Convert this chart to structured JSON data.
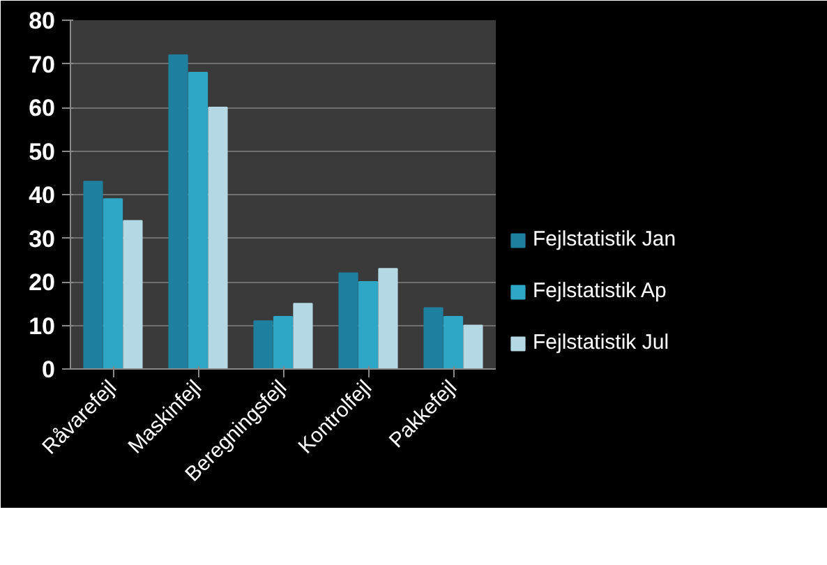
{
  "chart_data": {
    "type": "bar",
    "categories": [
      "Råvarefejl",
      "Maskinfejl",
      "Beregningsfejl",
      "Kontrolfejl",
      "Pakkefejl"
    ],
    "series": [
      {
        "name": "Fejlstatistik Jan",
        "color": "#1f7f9e",
        "values": [
          43,
          72,
          11,
          22,
          14
        ]
      },
      {
        "name": "Fejlstatistik Ap",
        "color": "#2ea6c6",
        "values": [
          39,
          68,
          12,
          20,
          12
        ]
      },
      {
        "name": "Fejlstatistik Jul",
        "color": "#b4d9e4",
        "values": [
          34,
          60,
          15,
          23,
          10
        ]
      }
    ],
    "ylim": [
      0,
      80
    ],
    "yticks": [
      0,
      10,
      20,
      30,
      40,
      50,
      60,
      70,
      80
    ],
    "grid": "y",
    "legend": "right"
  }
}
